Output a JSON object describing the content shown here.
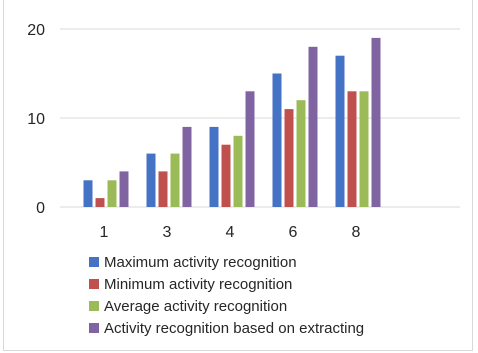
{
  "chart_data": {
    "type": "bar",
    "categories": [
      "1",
      "3",
      "4",
      "6",
      "8"
    ],
    "series": [
      {
        "name": "Maximum activity recognition",
        "color": "#4472C4",
        "values": [
          3,
          6,
          9,
          15,
          17
        ]
      },
      {
        "name": "Minimum activity recognition",
        "color": "#C0504D",
        "values": [
          1,
          4,
          7,
          11,
          13
        ]
      },
      {
        "name": "Average activity recognition",
        "color": "#9BBB59",
        "values": [
          3,
          6,
          8,
          12,
          13
        ]
      },
      {
        "name": "Activity recognition based on extracting",
        "color": "#8064A2",
        "values": [
          4,
          9,
          13,
          18,
          19
        ]
      }
    ],
    "y_ticks": [
      "0",
      "10",
      "20"
    ],
    "ylim": [
      0,
      20
    ],
    "grid": true,
    "legend_position": "bottom",
    "title": "",
    "xlabel": "",
    "ylabel": ""
  }
}
